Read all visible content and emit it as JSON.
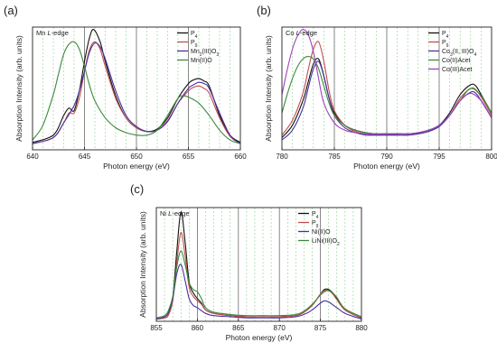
{
  "chart_data": [
    {
      "type": "line",
      "panel_label": "(a)",
      "edge_label": "Mn L-edge",
      "xlabel": "Photon energy (eV)",
      "ylabel": "Absorption Intensity (arb. units)",
      "xlim": [
        640,
        660
      ],
      "xticks": [
        640,
        645,
        650,
        655,
        660
      ],
      "ylim": [
        0,
        1
      ],
      "grid": "dashed green vertical lines every 1 eV; solid grey lines at 645, 650 and 655 eV",
      "legend_position": "top-right",
      "legend": [
        "P4",
        "P9",
        "Mn2(III)O3",
        "Mn(II)O"
      ],
      "series": [
        {
          "name": "P4",
          "color": "#111111",
          "x": [
            640,
            642,
            643,
            643.5,
            644,
            644.5,
            645,
            645.5,
            645.9,
            646.5,
            647,
            648,
            649,
            650,
            651,
            652,
            653,
            654,
            655,
            655.5,
            656,
            656.5,
            657,
            658,
            659,
            660
          ],
          "y": [
            0.06,
            0.12,
            0.28,
            0.34,
            0.32,
            0.48,
            0.72,
            0.92,
            0.98,
            0.88,
            0.72,
            0.44,
            0.26,
            0.18,
            0.15,
            0.17,
            0.26,
            0.42,
            0.54,
            0.57,
            0.58,
            0.56,
            0.52,
            0.28,
            0.12,
            0.06
          ]
        },
        {
          "name": "P9",
          "color": "#c0504d",
          "x": [
            640,
            642,
            643,
            643.5,
            644,
            644.5,
            645,
            645.5,
            646,
            646.5,
            647,
            648,
            649,
            650,
            651,
            652,
            653,
            654,
            655,
            655.5,
            656,
            656.5,
            657,
            658,
            659,
            660
          ],
          "y": [
            0.05,
            0.1,
            0.22,
            0.3,
            0.3,
            0.42,
            0.64,
            0.82,
            0.88,
            0.82,
            0.68,
            0.42,
            0.26,
            0.18,
            0.15,
            0.16,
            0.24,
            0.38,
            0.48,
            0.51,
            0.52,
            0.5,
            0.46,
            0.26,
            0.11,
            0.05
          ]
        },
        {
          "name": "Mn2(III)O3",
          "color": "#4b2ea0",
          "x": [
            640,
            642,
            643,
            644,
            644.5,
            645,
            645.5,
            646,
            646.5,
            647,
            648,
            649,
            650,
            651,
            652,
            653,
            654,
            655,
            655.5,
            656,
            656.5,
            657,
            658,
            659,
            660
          ],
          "y": [
            0.05,
            0.1,
            0.22,
            0.36,
            0.48,
            0.64,
            0.8,
            0.87,
            0.84,
            0.74,
            0.48,
            0.28,
            0.19,
            0.15,
            0.16,
            0.23,
            0.38,
            0.5,
            0.53,
            0.55,
            0.54,
            0.5,
            0.3,
            0.12,
            0.05
          ]
        },
        {
          "name": "Mn(II)O",
          "color": "#3b8a3b",
          "x": [
            640,
            641,
            642,
            642.5,
            643,
            643.5,
            644,
            644.5,
            645,
            645.5,
            646,
            647,
            648,
            649,
            650,
            651,
            652,
            653,
            654,
            654.5,
            655,
            656,
            657,
            658,
            659,
            660
          ],
          "y": [
            0.08,
            0.2,
            0.45,
            0.62,
            0.78,
            0.86,
            0.88,
            0.82,
            0.68,
            0.52,
            0.4,
            0.26,
            0.18,
            0.14,
            0.12,
            0.12,
            0.16,
            0.28,
            0.42,
            0.44,
            0.43,
            0.38,
            0.28,
            0.16,
            0.08,
            0.05
          ]
        }
      ]
    },
    {
      "type": "line",
      "panel_label": "(b)",
      "edge_label": "Co L-edge",
      "xlabel": "Photon energy (eV)",
      "ylabel": "Absorption Intensity (arb. units)",
      "xlim": [
        780,
        800
      ],
      "xticks": [
        780,
        785,
        790,
        795,
        800
      ],
      "ylim": [
        0,
        1
      ],
      "grid": "dashed green vertical lines every 1 eV; solid grey lines at 785, 790 and 795 eV",
      "legend_position": "top-right",
      "legend": [
        "P4",
        "P9",
        "Co3(II, III)O4",
        "Co(II)Acet",
        "Co(III)Acet"
      ],
      "series": [
        {
          "name": "P4",
          "color": "#111111",
          "x": [
            780,
            781,
            782,
            782.5,
            783,
            783.5,
            784,
            784.5,
            785,
            786,
            787,
            788,
            789,
            790,
            791,
            792,
            793,
            794,
            795,
            796,
            797,
            798,
            798.5,
            799,
            800
          ],
          "y": [
            0.1,
            0.2,
            0.4,
            0.55,
            0.7,
            0.74,
            0.6,
            0.42,
            0.3,
            0.2,
            0.16,
            0.14,
            0.13,
            0.13,
            0.13,
            0.13,
            0.14,
            0.16,
            0.2,
            0.3,
            0.45,
            0.53,
            0.52,
            0.45,
            0.3
          ]
        },
        {
          "name": "P9",
          "color": "#c0504d",
          "x": [
            780,
            781,
            782,
            782.5,
            783,
            783.5,
            784,
            784.5,
            785,
            786,
            787,
            788,
            789,
            790,
            791,
            792,
            793,
            794,
            795,
            796,
            797,
            798,
            798.5,
            799,
            800
          ],
          "y": [
            0.12,
            0.24,
            0.46,
            0.65,
            0.82,
            0.88,
            0.72,
            0.48,
            0.32,
            0.2,
            0.15,
            0.13,
            0.12,
            0.12,
            0.12,
            0.12,
            0.13,
            0.15,
            0.19,
            0.28,
            0.42,
            0.5,
            0.49,
            0.43,
            0.28
          ]
        },
        {
          "name": "Co3(II, III)O4",
          "color": "#4b2ea0",
          "x": [
            780,
            781,
            782,
            782.5,
            783,
            783.5,
            784,
            784.5,
            785,
            786,
            787,
            788,
            789,
            790,
            791,
            792,
            793,
            794,
            795,
            796,
            797,
            798,
            798.5,
            799,
            800
          ],
          "y": [
            0.08,
            0.16,
            0.34,
            0.5,
            0.66,
            0.72,
            0.6,
            0.42,
            0.28,
            0.18,
            0.14,
            0.12,
            0.12,
            0.12,
            0.12,
            0.12,
            0.13,
            0.15,
            0.19,
            0.28,
            0.4,
            0.47,
            0.46,
            0.4,
            0.26
          ]
        },
        {
          "name": "Co(II)Acet",
          "color": "#3b8a3b",
          "x": [
            780,
            780.5,
            781,
            781.5,
            782,
            782.5,
            783,
            783.5,
            784,
            784.5,
            785,
            786,
            787,
            788,
            789,
            790,
            791,
            792,
            793,
            794,
            795,
            796,
            797,
            798,
            799,
            800
          ],
          "y": [
            0.3,
            0.45,
            0.58,
            0.68,
            0.74,
            0.76,
            0.74,
            0.66,
            0.52,
            0.38,
            0.28,
            0.2,
            0.16,
            0.14,
            0.13,
            0.13,
            0.13,
            0.13,
            0.14,
            0.16,
            0.2,
            0.28,
            0.4,
            0.5,
            0.44,
            0.3
          ]
        },
        {
          "name": "Co(III)Acet",
          "color": "#a040c0",
          "x": [
            780,
            780.5,
            781,
            781.5,
            782,
            782.5,
            783,
            783.5,
            784,
            785,
            786,
            787,
            788,
            789,
            790,
            791,
            792,
            793,
            794,
            795,
            796,
            797,
            798,
            799,
            800
          ],
          "y": [
            0.45,
            0.65,
            0.82,
            0.93,
            0.98,
            0.94,
            0.8,
            0.58,
            0.38,
            0.22,
            0.16,
            0.14,
            0.13,
            0.13,
            0.13,
            0.13,
            0.13,
            0.14,
            0.16,
            0.2,
            0.28,
            0.4,
            0.46,
            0.4,
            0.26
          ]
        }
      ]
    },
    {
      "type": "line",
      "panel_label": "(c)",
      "edge_label": "Ni L-edge",
      "xlabel": "Photon energy (eV)",
      "ylabel": "Absorption Intensity (arb. units)",
      "xlim": [
        855,
        880
      ],
      "xticks": [
        855,
        860,
        865,
        870,
        875,
        880
      ],
      "ylim": [
        0,
        1
      ],
      "grid": "dashed green vertical lines every 1 eV; solid grey lines at 860, 865, 870 and 875 eV",
      "legend_position": "top-right",
      "legend": [
        "P4",
        "P9",
        "Ni(II)O",
        "LiNi(III)O2"
      ],
      "series": [
        {
          "name": "P4",
          "color": "#111111",
          "x": [
            855,
            856,
            856.5,
            857,
            857.5,
            858,
            858.5,
            859,
            859.5,
            860,
            860.5,
            861,
            862,
            864,
            866,
            868,
            870,
            872,
            873,
            874,
            875,
            875.5,
            876,
            876.5,
            877,
            878,
            880
          ],
          "y": [
            0.02,
            0.03,
            0.06,
            0.2,
            0.62,
            0.96,
            0.7,
            0.35,
            0.25,
            0.2,
            0.16,
            0.1,
            0.07,
            0.05,
            0.04,
            0.04,
            0.04,
            0.05,
            0.08,
            0.14,
            0.24,
            0.28,
            0.28,
            0.25,
            0.2,
            0.1,
            0.03
          ]
        },
        {
          "name": "P9",
          "color": "#c0504d",
          "x": [
            855,
            856,
            856.5,
            857,
            857.5,
            858,
            858.5,
            859,
            859.5,
            860,
            860.5,
            861,
            862,
            864,
            866,
            868,
            870,
            872,
            873,
            874,
            875,
            875.5,
            876,
            876.5,
            877,
            878,
            880
          ],
          "y": [
            0.02,
            0.03,
            0.06,
            0.18,
            0.52,
            0.78,
            0.58,
            0.3,
            0.22,
            0.18,
            0.15,
            0.1,
            0.07,
            0.05,
            0.04,
            0.04,
            0.04,
            0.05,
            0.08,
            0.14,
            0.24,
            0.27,
            0.27,
            0.24,
            0.19,
            0.1,
            0.03
          ]
        },
        {
          "name": "Ni(II)O",
          "color": "#4b2ea0",
          "x": [
            855,
            856,
            856.5,
            857,
            857.5,
            858,
            858.5,
            859,
            859.5,
            860,
            861,
            862,
            864,
            866,
            868,
            870,
            872,
            873,
            874,
            875,
            875.5,
            876,
            877,
            878,
            880
          ],
          "y": [
            0.02,
            0.04,
            0.08,
            0.2,
            0.42,
            0.5,
            0.36,
            0.2,
            0.14,
            0.12,
            0.07,
            0.05,
            0.04,
            0.03,
            0.03,
            0.03,
            0.04,
            0.06,
            0.1,
            0.16,
            0.18,
            0.17,
            0.12,
            0.07,
            0.02
          ]
        },
        {
          "name": "LiNi(III)O2",
          "color": "#3b8a3b",
          "x": [
            855,
            856,
            856.5,
            857,
            857.5,
            858,
            858.5,
            859,
            859.5,
            860,
            860.5,
            861,
            862,
            864,
            866,
            868,
            870,
            872,
            873,
            874,
            875,
            875.5,
            876,
            876.5,
            877,
            878,
            880
          ],
          "y": [
            0.03,
            0.05,
            0.1,
            0.22,
            0.48,
            0.62,
            0.5,
            0.34,
            0.28,
            0.26,
            0.2,
            0.12,
            0.08,
            0.06,
            0.05,
            0.05,
            0.05,
            0.06,
            0.09,
            0.15,
            0.23,
            0.26,
            0.27,
            0.25,
            0.21,
            0.11,
            0.04
          ]
        }
      ]
    }
  ]
}
